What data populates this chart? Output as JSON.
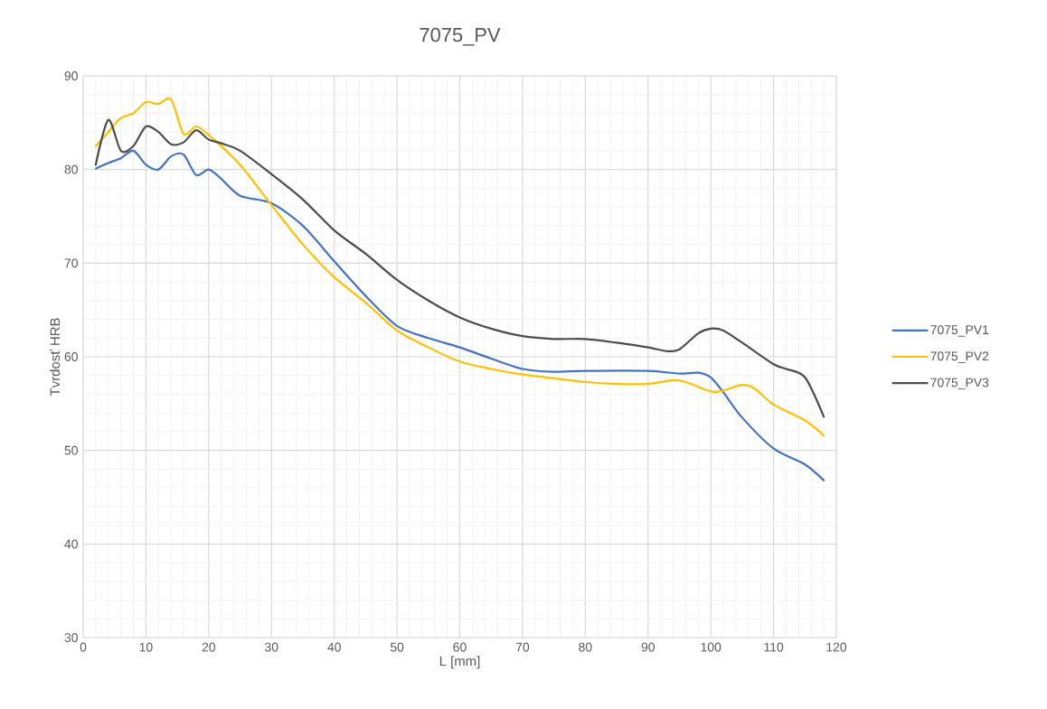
{
  "chart_data": {
    "type": "line",
    "title": "7075_PV",
    "xlabel": "L [mm]",
    "ylabel": "Tvrdosť HRB",
    "xlim": [
      0,
      120
    ],
    "xticks": [
      0,
      10,
      20,
      30,
      40,
      50,
      60,
      70,
      80,
      90,
      100,
      110,
      120
    ],
    "ylim": [
      30,
      90
    ],
    "yticks": [
      30,
      40,
      50,
      60,
      70,
      80,
      90
    ],
    "grid": true,
    "legend": "right",
    "marker": "none",
    "line_style": "solid",
    "series": [
      {
        "name": "7075_PV1",
        "color": "#4472c4",
        "x": [
          2,
          4,
          6,
          8,
          10,
          12,
          14,
          16,
          18,
          20,
          22,
          25,
          30,
          35,
          40,
          45,
          50,
          55,
          60,
          65,
          70,
          75,
          80,
          90,
          95,
          98,
          100,
          102,
          105,
          110,
          115,
          118
        ],
        "values": [
          80.1,
          80.7,
          81.2,
          82.0,
          80.5,
          80.0,
          81.4,
          81.6,
          79.4,
          80.0,
          79.0,
          77.2,
          76.4,
          74.0,
          70.2,
          66.5,
          63.3,
          62.0,
          61.0,
          59.8,
          58.7,
          58.4,
          58.5,
          58.5,
          58.2,
          58.3,
          57.8,
          56.2,
          53.5,
          50.2,
          48.5,
          46.8
        ]
      },
      {
        "name": "7075_PV2",
        "color": "#ffc000",
        "x": [
          2,
          4,
          6,
          8,
          10,
          12,
          14,
          16,
          18,
          20,
          25,
          30,
          35,
          40,
          45,
          50,
          55,
          60,
          65,
          70,
          75,
          80,
          85,
          90,
          94,
          96,
          100,
          102,
          105,
          107,
          110,
          115,
          118
        ],
        "values": [
          82.5,
          84.0,
          85.5,
          86.0,
          87.2,
          87.0,
          87.5,
          83.8,
          84.6,
          83.7,
          80.5,
          76.2,
          72.0,
          68.5,
          65.8,
          62.8,
          61.0,
          59.5,
          58.7,
          58.1,
          57.7,
          57.3,
          57.1,
          57.1,
          57.5,
          57.3,
          56.3,
          56.4,
          57.0,
          56.6,
          54.9,
          53.2,
          51.6
        ]
      },
      {
        "name": "7075_PV3",
        "color": "#4d4d4d",
        "x": [
          2,
          4,
          6,
          8,
          10,
          12,
          14,
          16,
          18,
          20,
          22,
          25,
          30,
          35,
          40,
          45,
          50,
          55,
          60,
          65,
          70,
          75,
          80,
          85,
          90,
          93,
          95,
          98,
          100,
          102,
          105,
          110,
          112,
          115,
          118
        ],
        "values": [
          80.5,
          85.3,
          82.0,
          82.5,
          84.6,
          84.0,
          82.7,
          82.9,
          84.2,
          83.2,
          82.8,
          82.0,
          79.5,
          76.8,
          73.5,
          71.0,
          68.2,
          66.0,
          64.2,
          63.0,
          62.2,
          61.9,
          61.9,
          61.5,
          61.0,
          60.6,
          60.8,
          62.5,
          63.0,
          62.8,
          61.5,
          59.2,
          58.7,
          57.8,
          53.6
        ]
      }
    ]
  }
}
